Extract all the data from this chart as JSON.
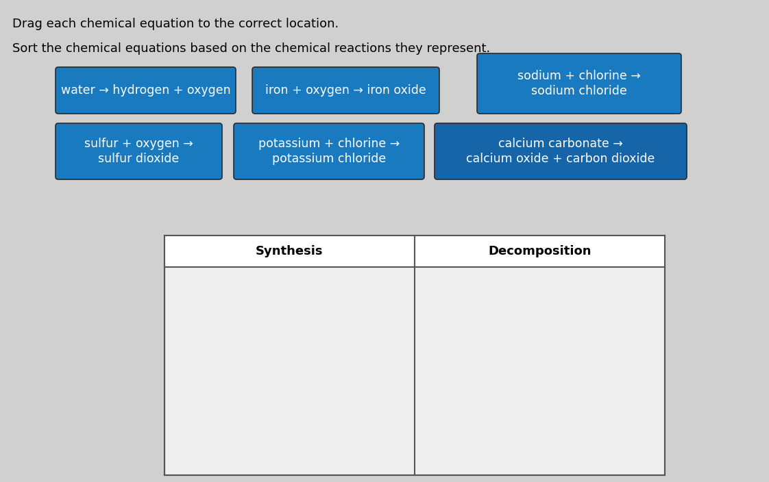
{
  "title1": "Drag each chemical equation to the correct location.",
  "title2": "Sort the chemical equations based on the chemical reactions they represent.",
  "background_color": "#d0d0d0",
  "card_color_blue": "#1a7abf",
  "card_color_darkblue": "#1565a8",
  "card_text_color": "#ffffff",
  "cards_row1": [
    {
      "lines": [
        "water → hydrogen + oxygen"
      ]
    },
    {
      "lines": [
        "iron + oxygen → iron oxide"
      ]
    },
    {
      "lines": [
        "sodium + chlorine →",
        "sodium chloride"
      ]
    }
  ],
  "cards_row2": [
    {
      "lines": [
        "sulfur + oxygen →",
        "sulfur dioxide"
      ]
    },
    {
      "lines": [
        "potassium + chlorine →",
        "potassium chloride"
      ]
    },
    {
      "lines": [
        "calcium carbonate →",
        "calcium oxide + carbon dioxide"
      ]
    }
  ],
  "table_headers": [
    "Synthesis",
    "Decomposition"
  ],
  "table_bg": "#efefef",
  "table_header_bg": "#ffffff",
  "table_border": "#555555",
  "header_font_size": 13,
  "card_font_size": 12.5,
  "title_font_size": 13
}
